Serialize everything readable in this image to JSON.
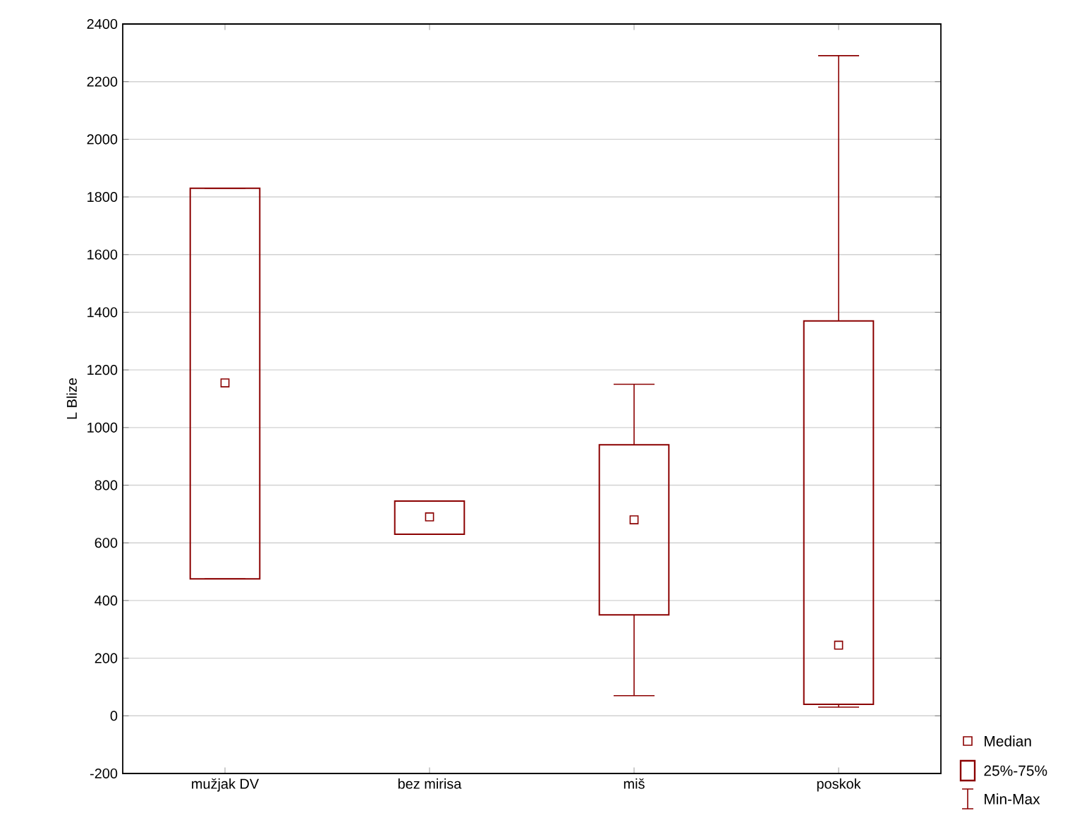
{
  "chart_data": {
    "type": "box",
    "ylabel": "L Blize",
    "categories": [
      "mužjak DV",
      "bez mirisa",
      "miš",
      "poskok"
    ],
    "boxes": [
      {
        "low": 475,
        "q1": 475,
        "median": 1155,
        "q3": 1830,
        "high": 1830
      },
      {
        "low": 630,
        "q1": 630,
        "median": 690,
        "q3": 745,
        "high": 745
      },
      {
        "low": 70,
        "q1": 350,
        "median": 680,
        "q3": 940,
        "high": 1150
      },
      {
        "low": 30,
        "q1": 40,
        "median": 245,
        "q3": 1370,
        "high": 2290
      }
    ],
    "color": "#8b0000",
    "ylim": [
      -200,
      2400
    ],
    "yticks": [
      -200,
      0,
      200,
      400,
      600,
      800,
      1000,
      1200,
      1400,
      1600,
      1800,
      2000,
      2200,
      2400
    ],
    "grid": "y",
    "marker": "square",
    "annotations": [
      "Median",
      "25%-75%",
      "Min-Max"
    ]
  }
}
